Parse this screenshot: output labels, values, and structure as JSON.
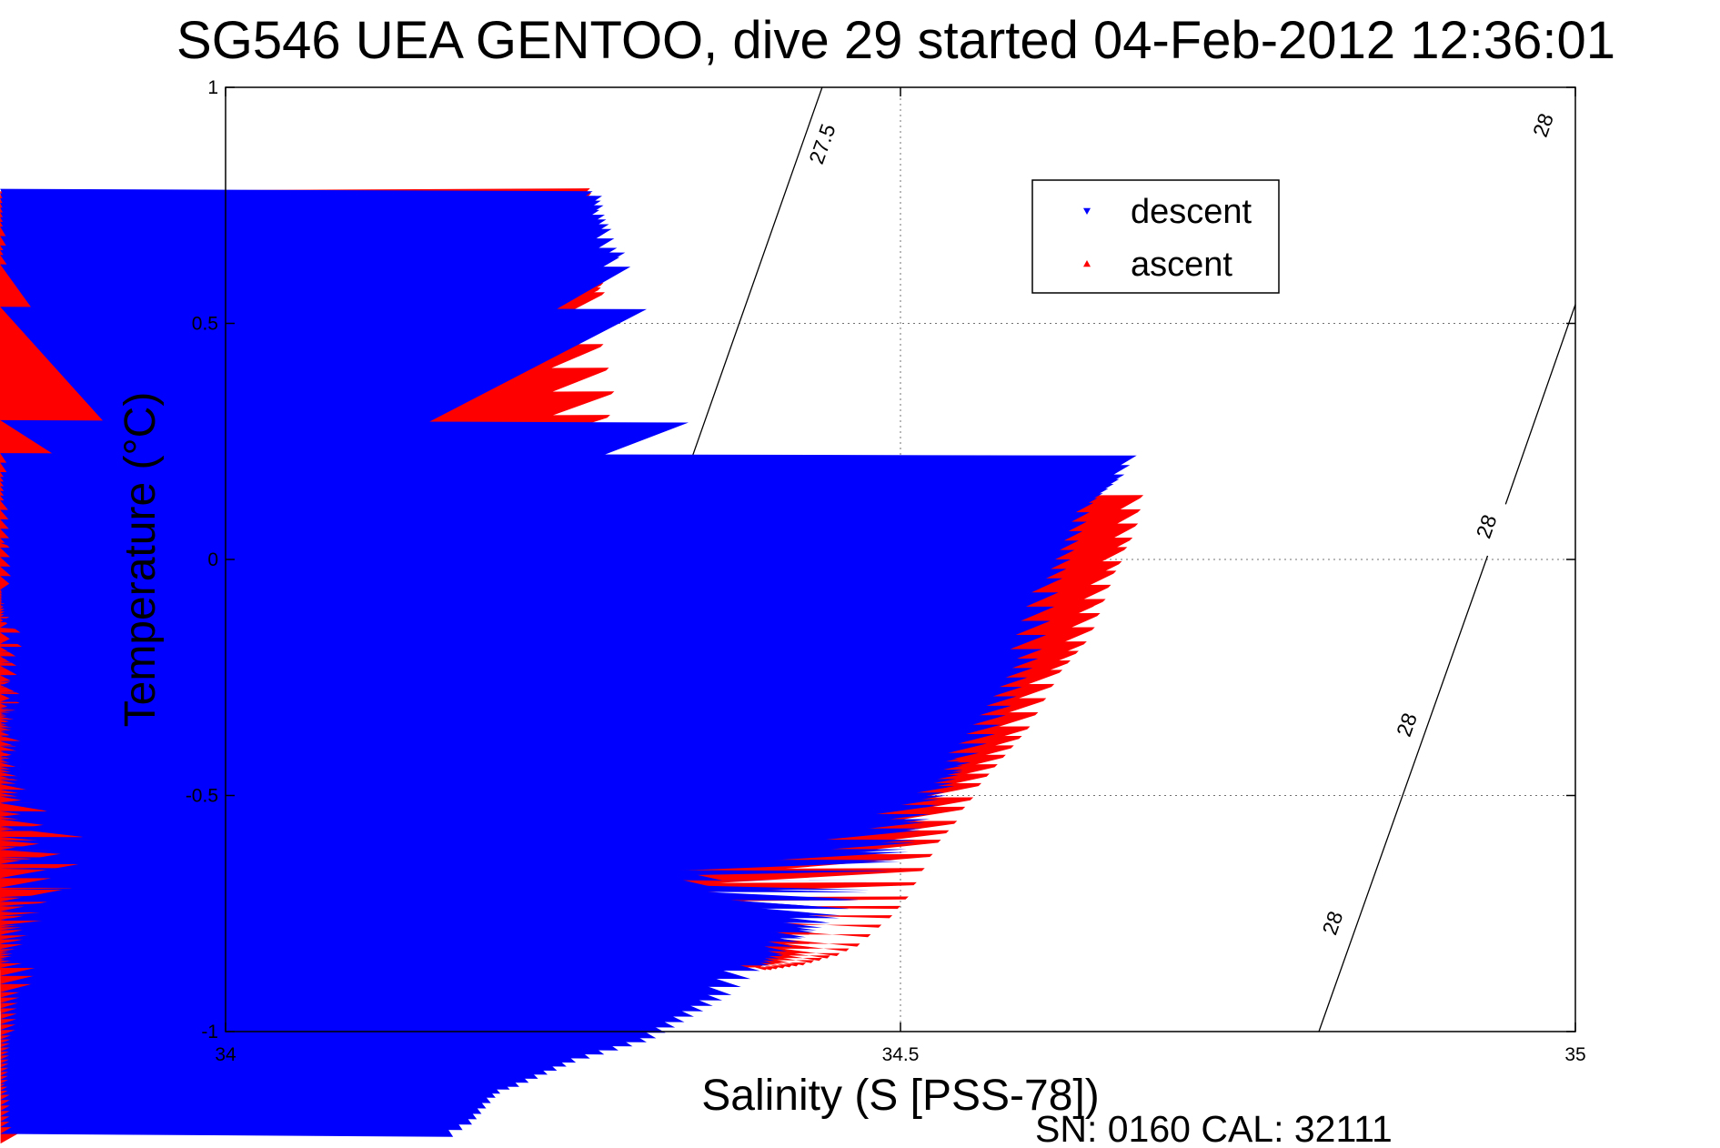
{
  "chart_data": {
    "type": "scatter",
    "title": "SG546 UEA GENTOO, dive 29 started 04-Feb-2012 12:36:01",
    "xlabel": "Salinity (S [PSS-78])",
    "ylabel": "Temperature (°C)",
    "xlim": [
      34,
      35
    ],
    "ylim": [
      -1,
      1
    ],
    "xticks": [
      "34",
      "34.5",
      "35"
    ],
    "yticks": [
      "-1",
      "-0.5",
      "0",
      "0.5",
      "1"
    ],
    "grid": true,
    "legend_position": "top-right",
    "footer": "SN: 0160  CAL: 32111",
    "colors": {
      "descent": "#0000ff",
      "ascent": "#ff0000",
      "axes": "#000000"
    },
    "contours": [
      {
        "label": "27.5",
        "points": [
          [
            34.193,
            -1.0
          ],
          [
            34.319,
            0.0
          ],
          [
            34.442,
            1.0
          ]
        ],
        "label_positions": [
          [
            34.209,
            -0.87
          ],
          [
            34.254,
            -0.4
          ],
          [
            34.316,
            0.04
          ],
          [
            34.442,
            0.88
          ]
        ]
      },
      {
        "label": "28",
        "points": [
          [
            34.81,
            -1.0
          ],
          [
            34.934,
            0.0
          ],
          [
            35.0,
            0.54
          ]
        ],
        "label_positions": [
          [
            34.82,
            -0.77
          ],
          [
            34.875,
            -0.35
          ],
          [
            34.934,
            0.07
          ],
          [
            34.976,
            0.92
          ]
        ]
      }
    ],
    "series": [
      {
        "name": "descent",
        "marker": "triangle-down",
        "x": [
          34.272,
          34.274,
          34.275,
          34.276,
          34.277,
          34.278,
          34.279,
          34.28,
          34.281,
          34.282,
          34.284,
          34.286,
          34.288,
          34.29,
          34.292,
          34.296,
          34.3,
          34.312,
          34.343,
          34.355,
          34.36,
          34.371,
          34.396,
          34.381,
          34.344,
          34.34,
          34.336,
          34.33,
          34.326,
          34.323,
          34.34,
          34.342,
          34.348,
          34.35,
          34.353,
          34.354,
          34.356,
          34.357,
          34.359,
          34.36,
          34.361,
          34.362,
          34.363,
          34.364,
          34.365,
          34.366,
          34.368,
          34.37,
          34.372,
          34.374,
          34.376,
          34.38,
          34.384,
          34.388,
          34.392,
          34.395,
          34.397,
          34.4,
          34.403,
          34.405,
          34.407,
          34.41,
          34.413,
          34.416,
          34.42,
          34.425,
          34.43,
          34.436,
          34.442,
          34.448,
          34.455,
          34.462,
          34.47,
          34.478,
          34.486,
          34.494,
          34.5,
          34.506,
          34.511,
          34.516,
          34.522,
          34.528,
          34.534,
          34.54,
          34.546,
          34.552,
          34.558,
          34.564,
          34.57,
          34.574,
          34.578,
          34.582,
          34.586,
          34.59,
          34.594,
          34.598,
          34.602,
          34.605,
          34.608,
          34.611,
          34.614,
          34.617,
          34.62,
          34.623,
          34.626,
          34.629,
          34.632,
          34.635,
          34.638,
          34.64,
          34.643,
          34.646,
          34.65,
          34.654,
          34.658,
          34.662,
          34.666,
          34.67,
          34.675
        ],
        "y": [
          0.78,
          0.77,
          0.76,
          0.75,
          0.74,
          0.76,
          0.77,
          0.75,
          0.73,
          0.72,
          0.71,
          0.7,
          0.68,
          0.66,
          0.64,
          0.65,
          0.62,
          0.53,
          0.29,
          0.22,
          0.13,
          0.03,
          -0.07,
          -0.07,
          -0.12,
          -0.1,
          -0.13,
          -0.15,
          -0.12,
          -0.13,
          -0.18,
          -0.2,
          -0.22,
          -0.25,
          -0.28,
          -0.3,
          -0.33,
          -0.36,
          -0.4,
          -0.43,
          -0.47,
          -0.52,
          -0.55,
          -0.58,
          -0.62,
          -0.65,
          -0.68,
          -0.7,
          -0.73,
          -0.75,
          -0.77,
          -0.8,
          -0.82,
          -0.83,
          -0.84,
          -0.85,
          -0.855,
          -0.86,
          -0.86,
          -0.855,
          -0.85,
          -0.845,
          -0.84,
          -0.83,
          -0.82,
          -0.81,
          -0.8,
          -0.79,
          -0.78,
          -0.77,
          -0.76,
          -0.74,
          -0.72,
          -0.7,
          -0.68,
          -0.66,
          -0.64,
          -0.62,
          -0.6,
          -0.57,
          -0.55,
          -0.52,
          -0.5,
          -0.48,
          -0.45,
          -0.43,
          -0.41,
          -0.39,
          -0.37,
          -0.35,
          -0.33,
          -0.31,
          -0.29,
          -0.27,
          -0.25,
          -0.23,
          -0.21,
          -0.19,
          -0.16,
          -0.13,
          -0.1,
          -0.07,
          -0.04,
          -0.02,
          0.0,
          0.02,
          0.04,
          0.06,
          0.08,
          0.1,
          0.12,
          0.13,
          0.14,
          0.15,
          0.16,
          0.17,
          0.18,
          0.2,
          0.22
        ]
      },
      {
        "name": "ascent",
        "marker": "triangle-up",
        "x": [
          34.27,
          34.271,
          34.272,
          34.273,
          34.274,
          34.275,
          34.276,
          34.277,
          34.278,
          34.279,
          34.28,
          34.281,
          34.278,
          34.276,
          34.274,
          34.273,
          34.275,
          34.28,
          34.284,
          34.288,
          34.285,
          34.282,
          34.29,
          34.302,
          34.31,
          34.318,
          34.32,
          34.322,
          34.318,
          34.315,
          34.31,
          34.305,
          34.3,
          34.312,
          34.314,
          34.316,
          34.318,
          34.32,
          34.322,
          34.324,
          34.326,
          34.328,
          34.331,
          34.334,
          34.338,
          34.342,
          34.346,
          34.35,
          34.354,
          34.358,
          34.362,
          34.366,
          34.37,
          34.374,
          34.378,
          34.382,
          34.386,
          34.39,
          34.394,
          34.398,
          34.402,
          34.406,
          34.41,
          34.415,
          34.42,
          34.425,
          34.43,
          34.436,
          34.442,
          34.448,
          34.455,
          34.462,
          34.47,
          34.478,
          34.486,
          34.494,
          34.5,
          34.506,
          34.512,
          34.518,
          34.524,
          34.53,
          34.536,
          34.542,
          34.548,
          34.554,
          34.56,
          34.566,
          34.572,
          34.578,
          34.584,
          34.59,
          34.596,
          34.602,
          34.608,
          34.614,
          34.62,
          34.626,
          34.632,
          34.638,
          34.644,
          34.648,
          34.652,
          34.656,
          34.66,
          34.664,
          34.668,
          34.672,
          34.676,
          34.678,
          34.68,
          34.66,
          34.64,
          34.645,
          34.64,
          34.638
        ],
        "y": [
          0.78,
          0.77,
          0.76,
          0.74,
          0.72,
          0.7,
          0.68,
          0.66,
          0.63,
          0.6,
          0.58,
          0.56,
          0.57,
          0.59,
          0.62,
          0.55,
          0.5,
          0.45,
          0.4,
          0.35,
          0.3,
          0.25,
          0.2,
          0.07,
          0.02,
          0.02,
          -0.03,
          -0.06,
          -0.08,
          -0.09,
          -0.1,
          -0.09,
          -0.08,
          -0.2,
          -0.25,
          -0.28,
          -0.31,
          -0.34,
          -0.37,
          -0.4,
          -0.43,
          -0.46,
          -0.48,
          -0.51,
          -0.55,
          -0.6,
          -0.63,
          -0.66,
          -0.7,
          -0.72,
          -0.74,
          -0.77,
          -0.79,
          -0.8,
          -0.82,
          -0.83,
          -0.84,
          -0.85,
          -0.86,
          -0.865,
          -0.87,
          -0.87,
          -0.868,
          -0.866,
          -0.864,
          -0.862,
          -0.86,
          -0.855,
          -0.85,
          -0.845,
          -0.84,
          -0.83,
          -0.82,
          -0.8,
          -0.78,
          -0.76,
          -0.74,
          -0.72,
          -0.69,
          -0.66,
          -0.63,
          -0.6,
          -0.58,
          -0.56,
          -0.53,
          -0.51,
          -0.48,
          -0.46,
          -0.44,
          -0.42,
          -0.4,
          -0.38,
          -0.36,
          -0.33,
          -0.3,
          -0.27,
          -0.24,
          -0.22,
          -0.2,
          -0.18,
          -0.15,
          -0.12,
          -0.09,
          -0.06,
          -0.03,
          -0.01,
          0.02,
          0.04,
          0.07,
          0.1,
          0.13,
          0.1,
          0.05,
          -0.1,
          -0.1,
          -0.1
        ]
      }
    ]
  }
}
